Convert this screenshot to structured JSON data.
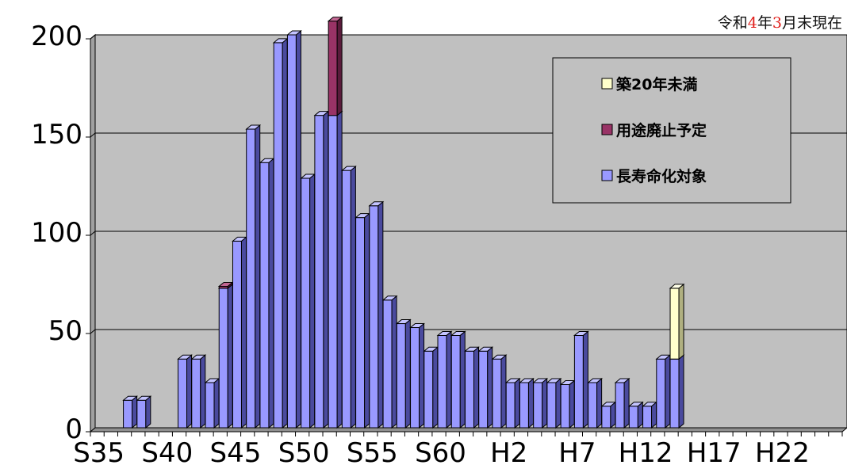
{
  "note": {
    "part1": "令和",
    "year": "4",
    "part2": "年",
    "month": "3",
    "part3": "月末現在"
  },
  "colors": {
    "plot_bg": "#c0c0c0",
    "legend_bg": "#c0c0c0",
    "a_front": "#9999ff",
    "a_side": "#4a4a9e",
    "a_top": "#c4c4ff",
    "b_front": "#993366",
    "b_side": "#5a1b3b",
    "b_top": "#c26692",
    "c_front": "#ffffcc",
    "c_side": "#b0b080",
    "c_top": "#ffffe8"
  },
  "chart_data": {
    "type": "bar",
    "stacked": true,
    "ylim": [
      0,
      200
    ],
    "yticks": [
      0,
      50,
      100,
      150,
      200
    ],
    "x_tick_labels": [
      "S35",
      "S40",
      "S45",
      "S50",
      "S55",
      "S60",
      "H2",
      "H7",
      "H12",
      "H17",
      "H22"
    ],
    "grid": true,
    "legend_position": "top-right",
    "categories": [
      "S35",
      "S36",
      "S37",
      "S38",
      "S39",
      "S40",
      "S41",
      "S42",
      "S43",
      "S44",
      "S45",
      "S46",
      "S47",
      "S48",
      "S49",
      "S50",
      "S51",
      "S52",
      "S53",
      "S54",
      "S55",
      "S56",
      "S57",
      "S58",
      "S59",
      "S60",
      "S61",
      "S62",
      "S63",
      "H1",
      "H2",
      "H3",
      "H4",
      "H5",
      "H6",
      "H7",
      "H8",
      "H9",
      "H10",
      "H11",
      "H12",
      "H13",
      "H14",
      "H15",
      "H16",
      "H17",
      "H18",
      "H19",
      "H20",
      "H21",
      "H22",
      "H23",
      "H24",
      "H25",
      "H26"
    ],
    "series": [
      {
        "name": "築20年未満",
        "key": "c",
        "values": [
          0,
          0,
          0,
          0,
          0,
          0,
          0,
          0,
          0,
          0,
          0,
          0,
          0,
          0,
          0,
          0,
          0,
          0,
          0,
          0,
          0,
          0,
          0,
          0,
          0,
          0,
          0,
          0,
          0,
          0,
          0,
          0,
          0,
          0,
          0,
          0,
          0,
          0,
          0,
          0,
          0,
          0,
          36,
          0,
          0,
          0,
          0,
          0,
          0,
          0,
          0,
          0,
          0,
          0,
          0
        ]
      },
      {
        "name": "用途廃止予定",
        "key": "b",
        "values": [
          0,
          0,
          0,
          0,
          0,
          0,
          0,
          0,
          0,
          1,
          0,
          0,
          0,
          0,
          0,
          0,
          0,
          48,
          0,
          0,
          0,
          0,
          0,
          0,
          0,
          0,
          0,
          0,
          0,
          0,
          0,
          0,
          0,
          0,
          0,
          0,
          0,
          0,
          0,
          0,
          0,
          0,
          0,
          0,
          0,
          0,
          0,
          0,
          0,
          0,
          0,
          0,
          0,
          0,
          0
        ]
      },
      {
        "name": "長寿命化対象",
        "key": "a",
        "values": [
          0,
          0,
          14,
          14,
          0,
          0,
          35,
          35,
          23,
          71,
          95,
          152,
          135,
          196,
          200,
          127,
          159,
          159,
          131,
          107,
          113,
          65,
          53,
          51,
          39,
          47,
          47,
          39,
          39,
          35,
          23,
          23,
          23,
          23,
          22,
          47,
          23,
          11,
          23,
          11,
          11,
          35,
          35,
          0,
          0,
          0,
          0,
          0,
          0,
          0,
          0,
          0,
          0,
          0,
          0
        ]
      }
    ]
  }
}
